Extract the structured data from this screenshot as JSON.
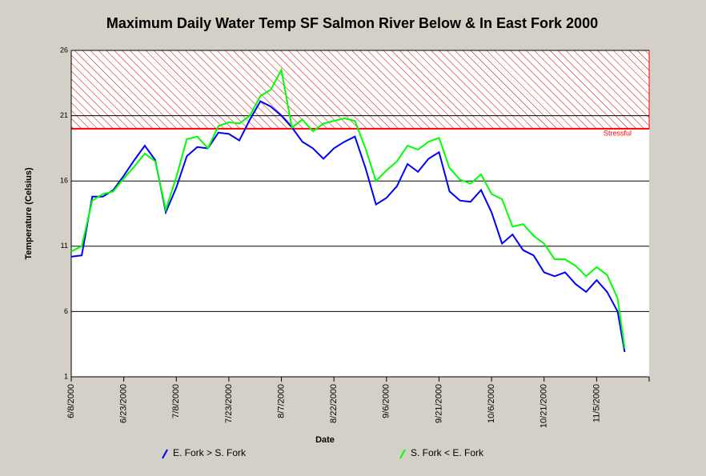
{
  "chart_data": {
    "type": "line",
    "title": "Maximum Daily Water Temp SF Salmon River Below & In East Fork 2000",
    "xlabel": "Date",
    "ylabel": "Temperature (Celsius)",
    "x": [
      "6/8/2000",
      "6/11/2000",
      "6/14/2000",
      "6/17/2000",
      "6/20/2000",
      "6/23/2000",
      "6/26/2000",
      "6/29/2000",
      "7/2/2000",
      "7/5/2000",
      "7/8/2000",
      "7/11/2000",
      "7/14/2000",
      "7/17/2000",
      "7/20/2000",
      "7/23/2000",
      "7/26/2000",
      "7/29/2000",
      "8/1/2000",
      "8/4/2000",
      "8/7/2000",
      "8/10/2000",
      "8/13/2000",
      "8/16/2000",
      "8/19/2000",
      "8/22/2000",
      "8/25/2000",
      "8/28/2000",
      "8/31/2000",
      "9/3/2000",
      "9/6/2000",
      "9/9/2000",
      "9/12/2000",
      "9/15/2000",
      "9/18/2000",
      "9/21/2000",
      "9/24/2000",
      "9/27/2000",
      "9/30/2000",
      "10/3/2000",
      "10/6/2000",
      "10/9/2000",
      "10/12/2000",
      "10/15/2000",
      "10/18/2000",
      "10/21/2000",
      "10/24/2000",
      "10/27/2000",
      "10/30/2000",
      "11/2/2000",
      "11/5/2000",
      "11/8/2000",
      "11/11/2000",
      "11/13/2000"
    ],
    "series": [
      {
        "name": "E. Fork > S. Fork",
        "color": "#0000ff",
        "values": [
          10.2,
          10.3,
          14.8,
          14.8,
          15.3,
          16.4,
          17.6,
          18.7,
          17.6,
          13.6,
          15.5,
          17.9,
          18.6,
          18.5,
          19.7,
          19.6,
          19.1,
          20.7,
          22.1,
          21.7,
          21,
          20.1,
          19,
          18.5,
          17.7,
          18.5,
          19,
          19.4,
          17,
          14.2,
          14.7,
          15.6,
          17.3,
          16.7,
          17.7,
          18.2,
          15.2,
          14.5,
          14.4,
          15.3,
          13.6,
          11.2,
          11.9,
          10.7,
          10.3,
          9,
          8.7,
          9,
          8.1,
          7.5,
          8.4,
          7.5,
          6,
          2.9
        ]
      },
      {
        "name": "S. Fork < E. Fork",
        "color": "#00ff00",
        "values": [
          10.6,
          11,
          14.5,
          15,
          15.2,
          16.2,
          17.1,
          18.1,
          17.5,
          13.8,
          16.3,
          19.2,
          19.4,
          18.5,
          20.2,
          20.5,
          20.4,
          21,
          22.5,
          23,
          24.5,
          20.1,
          20.7,
          19.8,
          20.4,
          20.6,
          20.8,
          20.6,
          18.5,
          16,
          16.8,
          17.5,
          18.7,
          18.4,
          19,
          19.3,
          17,
          16.1,
          15.8,
          16.5,
          15,
          14.6,
          12.5,
          12.7,
          11.8,
          11.2,
          10,
          10,
          9.5,
          8.7,
          9.4,
          8.8,
          7,
          3.2
        ]
      }
    ],
    "xlim": [
      "6/8/2000",
      "11/20/2000"
    ],
    "xticks": [
      "6/8/2000",
      "6/23/2000",
      "7/8/2000",
      "7/23/2000",
      "8/7/2000",
      "8/22/2000",
      "9/6/2000",
      "9/21/2000",
      "10/6/2000",
      "10/21/2000",
      "11/5/2000"
    ],
    "ylim": [
      1,
      26
    ],
    "yticks": [
      1,
      6,
      11,
      16,
      21,
      26
    ],
    "grid": true,
    "bands": [
      {
        "from": 20,
        "to": 26,
        "label": "Stressful",
        "color": "#ff0000"
      }
    ],
    "legend": "bottom"
  }
}
